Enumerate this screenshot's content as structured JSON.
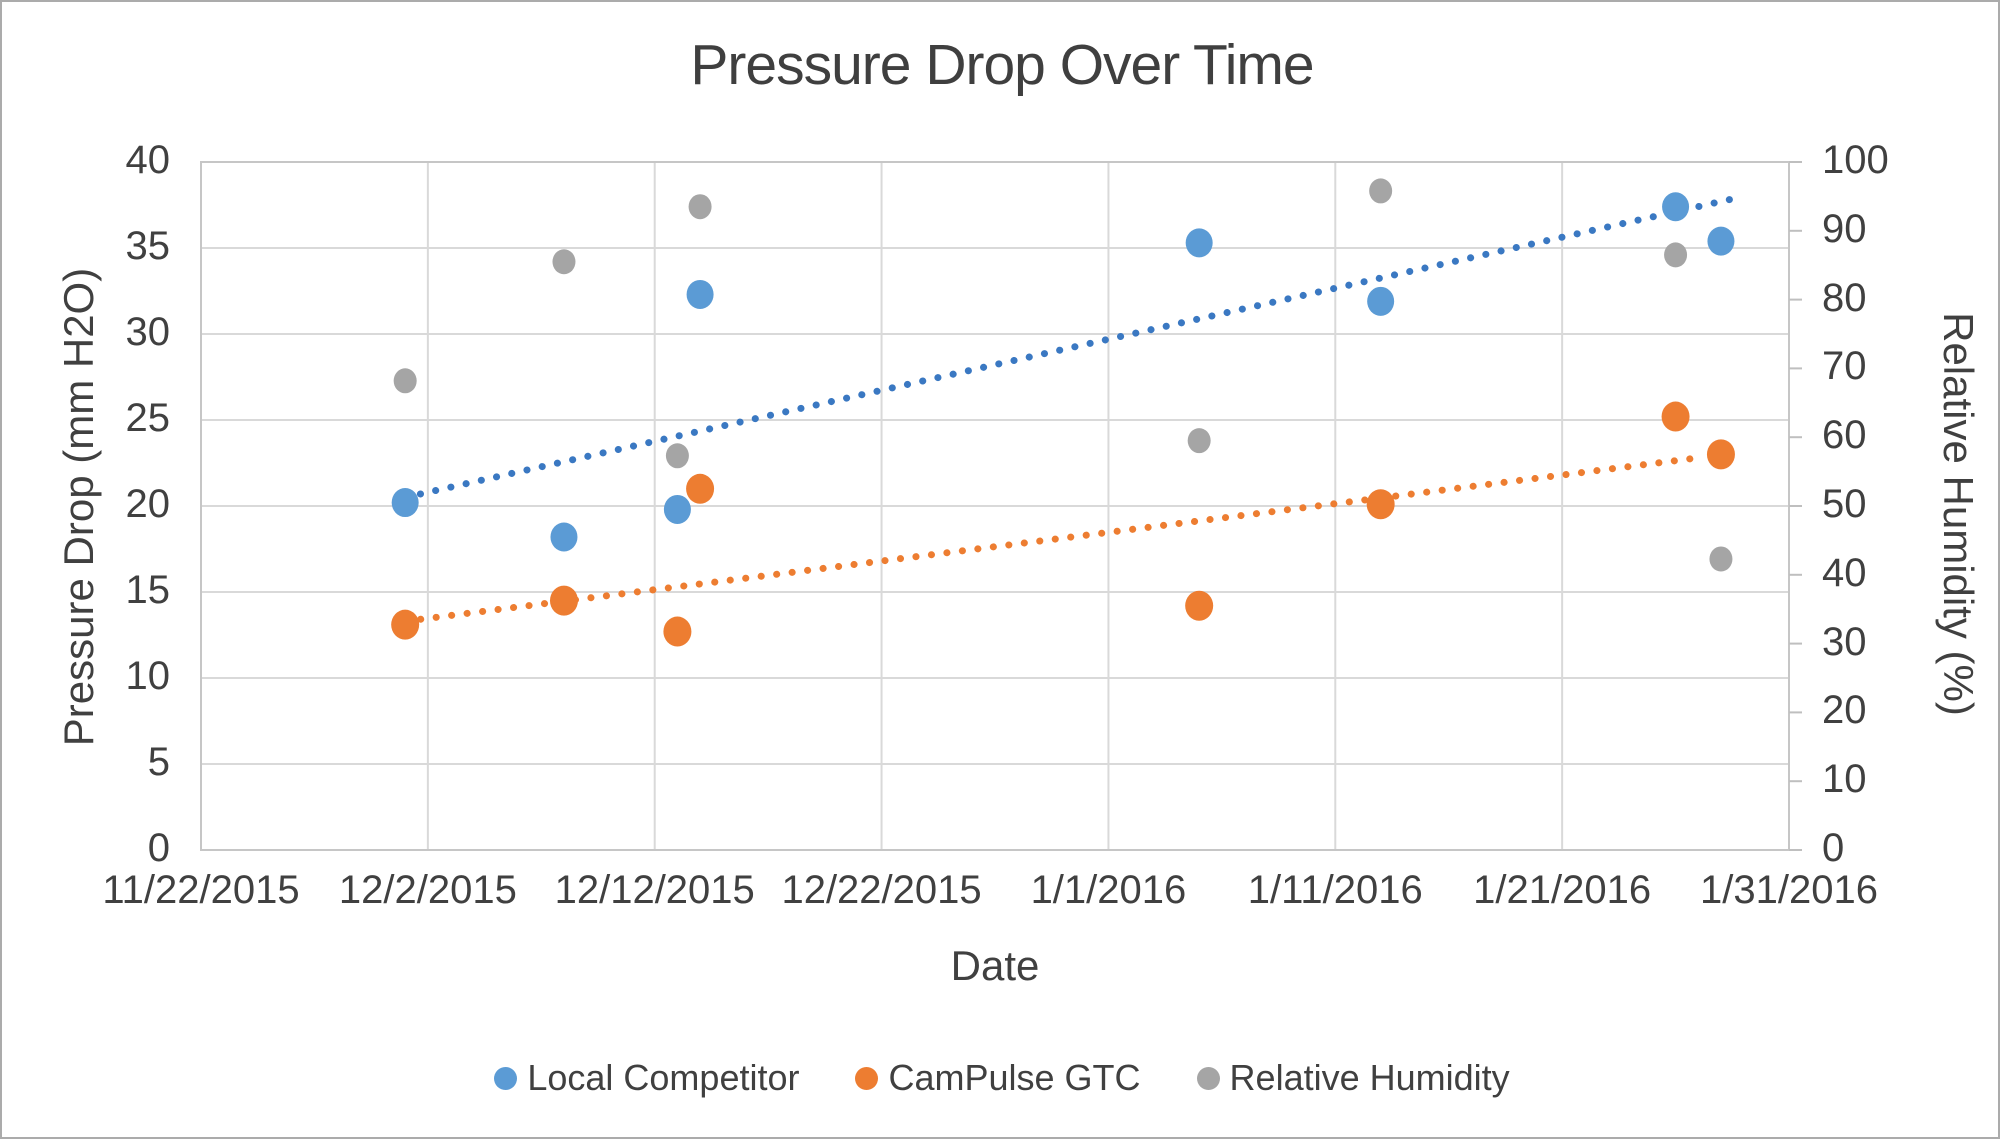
{
  "chart_data": {
    "type": "scatter",
    "title": "Pressure Drop Over Time",
    "x_axis": {
      "label": "Date",
      "tick_labels": [
        "11/22/2015",
        "12/2/2015",
        "12/12/2015",
        "12/22/2015",
        "1/1/2016",
        "1/11/2016",
        "1/21/2016",
        "1/31/2016"
      ],
      "tick_days": [
        0,
        10,
        20,
        30,
        40,
        50,
        60,
        70
      ],
      "range_days": [
        0,
        70
      ]
    },
    "y_axis_left": {
      "label": "Pressure Drop (mm H2O)",
      "min": 0,
      "max": 40,
      "step": 5,
      "tick_labels": [
        "0",
        "5",
        "10",
        "15",
        "20",
        "25",
        "30",
        "35",
        "40"
      ],
      "tick_values": [
        0,
        5,
        10,
        15,
        20,
        25,
        30,
        35,
        40
      ]
    },
    "y_axis_right": {
      "label": "Relative Humidity (%)",
      "min": 0,
      "max": 100,
      "step": 10,
      "tick_labels": [
        "0",
        "10",
        "20",
        "30",
        "40",
        "50",
        "60",
        "70",
        "80",
        "90",
        "100"
      ],
      "tick_values": [
        0,
        10,
        20,
        30,
        40,
        50,
        60,
        70,
        80,
        90,
        100
      ]
    },
    "observation_dates": [
      "12/1/2015",
      "12/8/2015",
      "12/13/2015",
      "12/14/2015",
      "1/5/2016",
      "1/13/2016",
      "1/26/2016",
      "1/28/2016"
    ],
    "observation_days": [
      9,
      16,
      21,
      22,
      44,
      52,
      65,
      67
    ],
    "series": [
      {
        "name": "Local Competitor",
        "axis": "left",
        "color": "#5B9BD5",
        "marker_radius": 13.5,
        "values": [
          20.2,
          18.2,
          19.8,
          32.3,
          35.3,
          31.9,
          37.4,
          35.4
        ]
      },
      {
        "name": "CamPulse GTC",
        "axis": "left",
        "color": "#ED7D31",
        "marker_radius": 14,
        "values": [
          13.1,
          14.5,
          12.7,
          21.0,
          14.2,
          20.1,
          25.2,
          23.0
        ]
      },
      {
        "name": "Relative Humidity",
        "axis": "right",
        "color": "#A5A5A5",
        "marker_radius": 11.5,
        "values": [
          68.2,
          85.5,
          57.3,
          93.5,
          59.5,
          95.8,
          86.5,
          42.3
        ]
      }
    ],
    "trendlines": [
      {
        "series": "Local Competitor",
        "color": "#3A78C2",
        "style": "dotted",
        "day_start": 9,
        "value_start": 20.5,
        "day_end": 68,
        "value_end": 38.0
      },
      {
        "series": "CamPulse GTC",
        "color": "#ED7D31",
        "style": "dotted",
        "day_start": 9,
        "value_start": 13.3,
        "day_end": 66,
        "value_end": 22.8
      }
    ],
    "grid": true,
    "legend_position": "bottom",
    "colors": {
      "text": "#404040",
      "gridline": "#D9D9D9",
      "plot_border": "#C6C6C6",
      "axis_tick": "#BFBFBF",
      "background": "#FFFFFF",
      "frame_border": "#ABABAB"
    }
  }
}
